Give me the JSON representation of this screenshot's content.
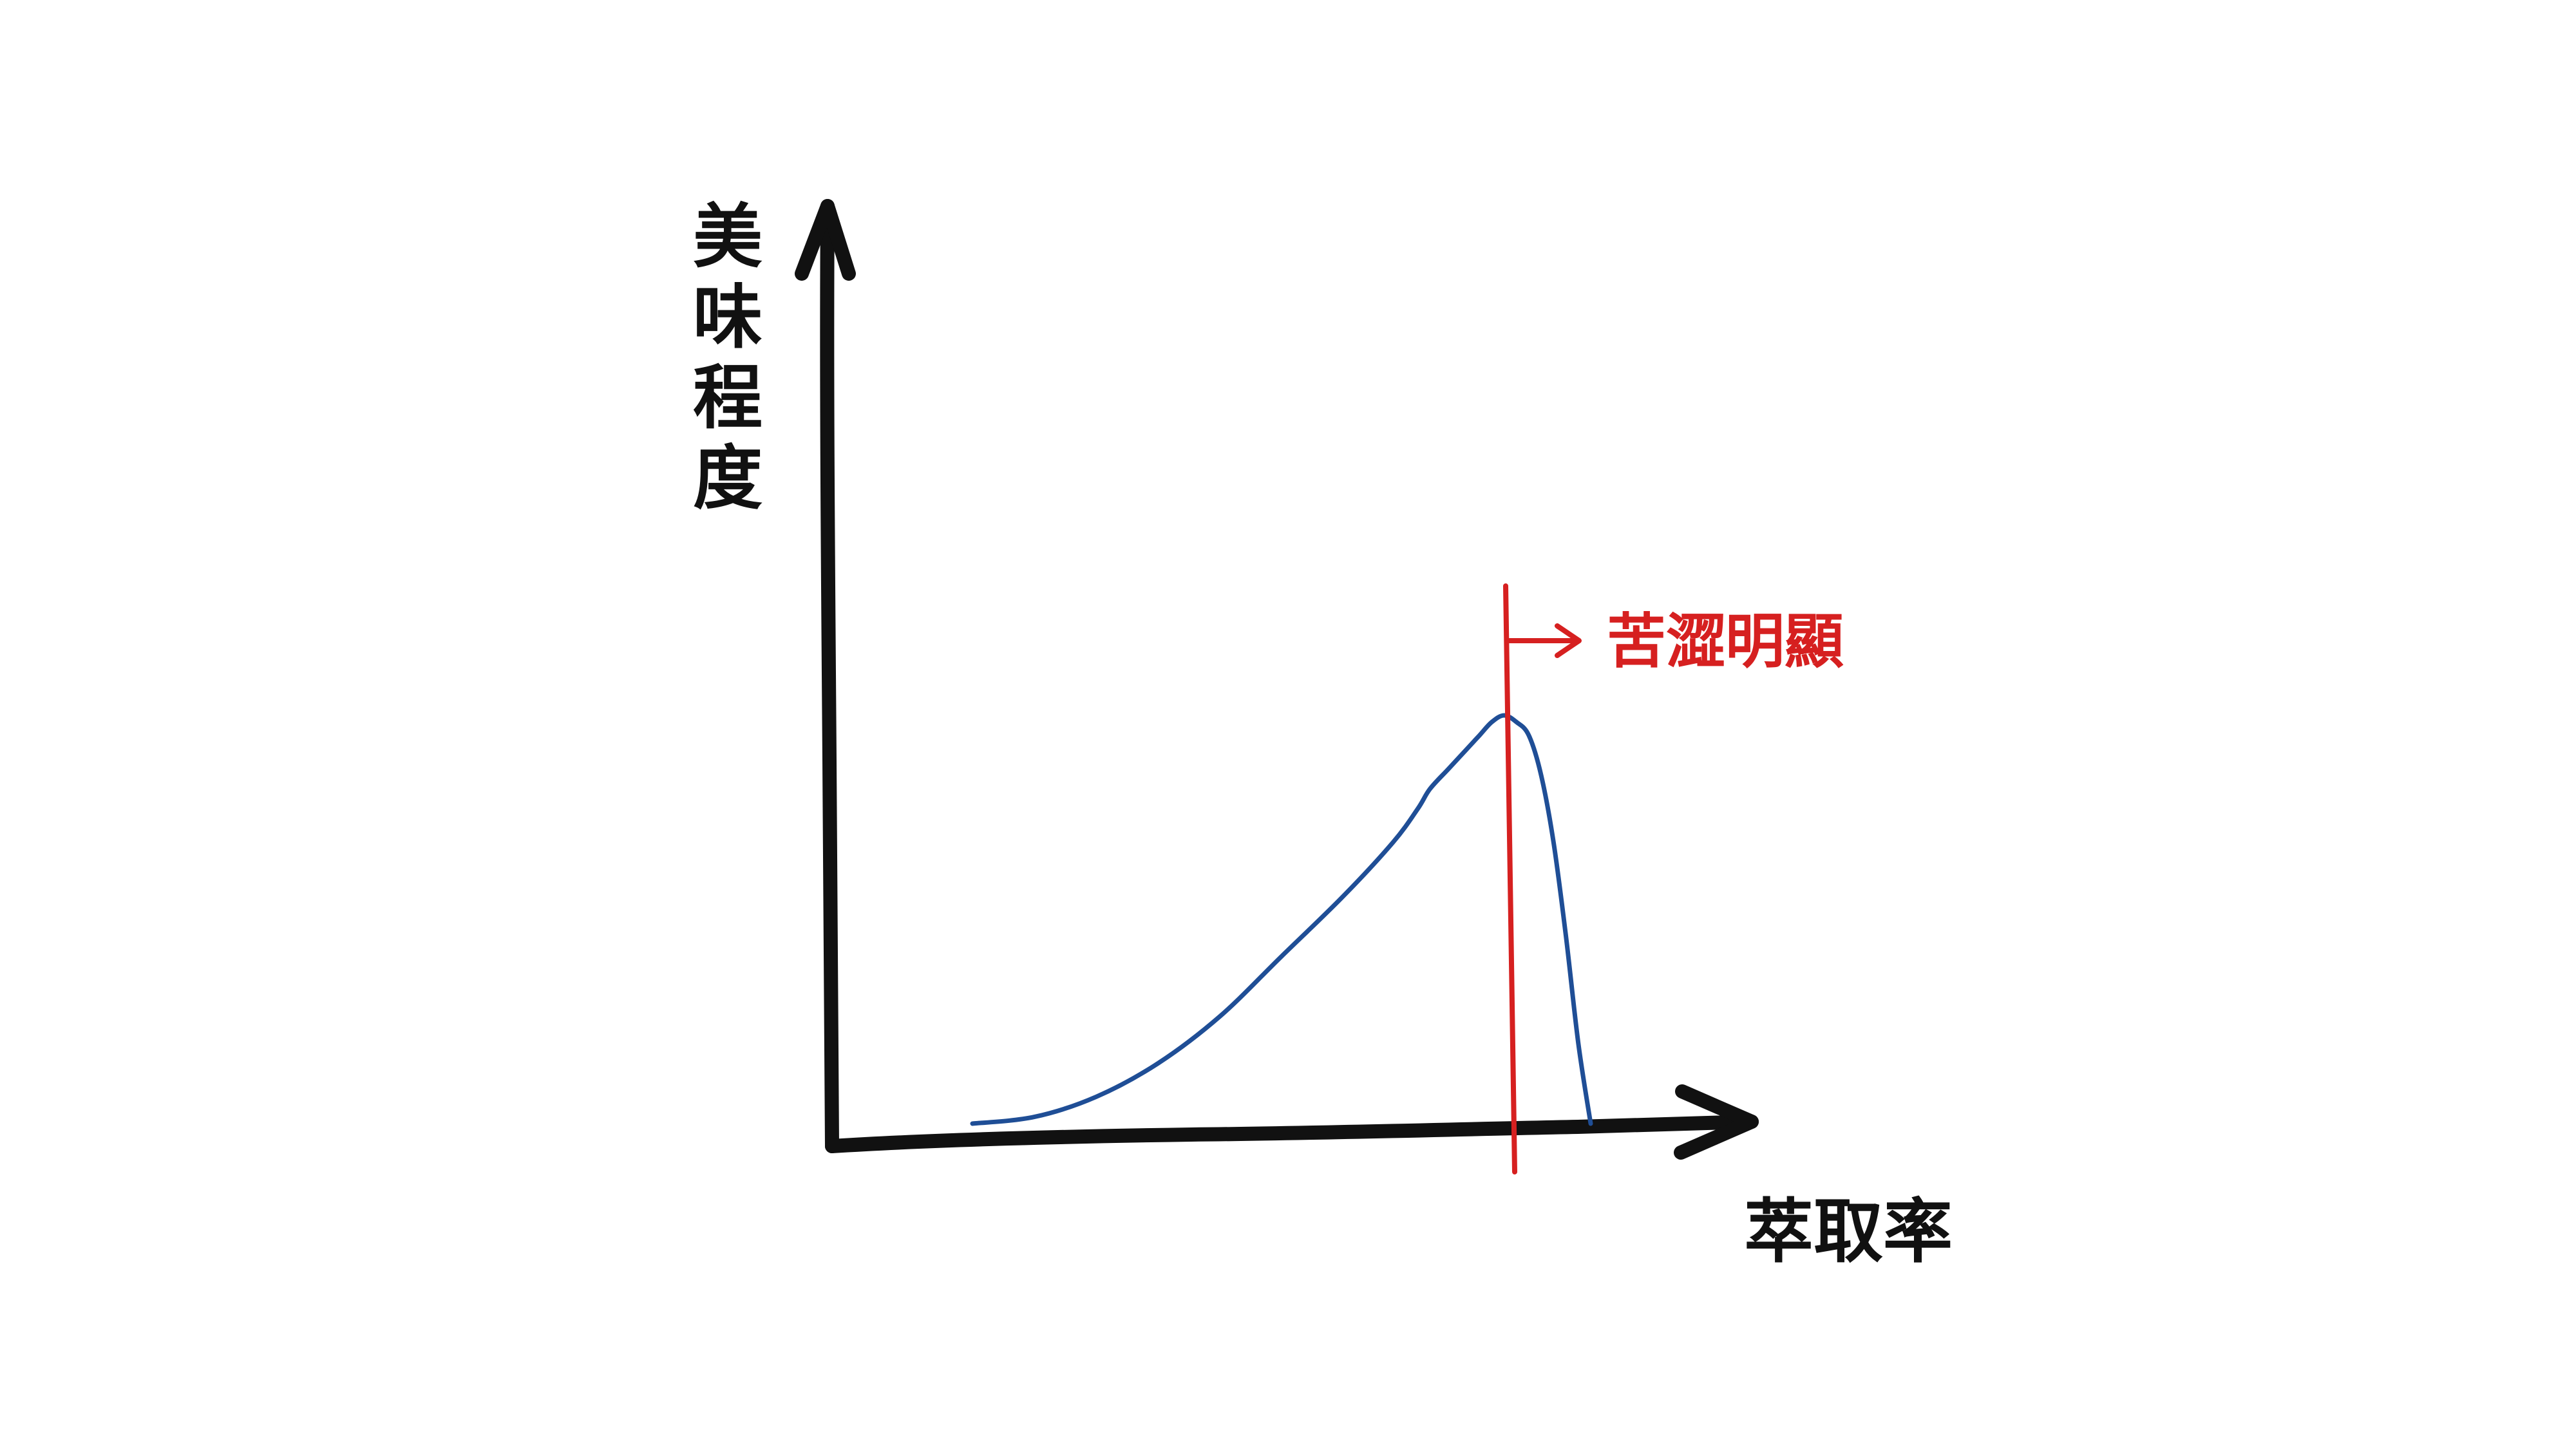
{
  "chart_data": {
    "type": "line",
    "title": "",
    "xlabel": "萃取率",
    "ylabel": "美味程度",
    "x_ticks": [],
    "y_ticks": [],
    "grid": false,
    "legend": "none",
    "annotations": [
      {
        "text": "苦澀明顯",
        "type": "vertical-line-with-arrow",
        "color": "#d62020"
      }
    ],
    "series": [
      {
        "color": "#1f4e96",
        "x": [
          0.0,
          0.1,
          0.2,
          0.3,
          0.4,
          0.5,
          0.6,
          0.68,
          0.72,
          0.74,
          0.77,
          0.8,
          0.82,
          0.84,
          0.86,
          0.88,
          0.9,
          0.92,
          0.94,
          0.96,
          0.98,
          1.0
        ],
        "y": [
          0.0,
          0.01,
          0.04,
          0.09,
          0.16,
          0.25,
          0.34,
          0.42,
          0.47,
          0.5,
          0.53,
          0.56,
          0.58,
          0.6,
          0.61,
          0.6,
          0.58,
          0.52,
          0.42,
          0.28,
          0.12,
          0.0
        ]
      }
    ],
    "peak_marker": {
      "x": 0.86,
      "y": 0.61
    }
  },
  "colors": {
    "axis": "#111111",
    "curve": "#1f4e96",
    "annotation": "#d62020",
    "background": "#ffffff"
  }
}
